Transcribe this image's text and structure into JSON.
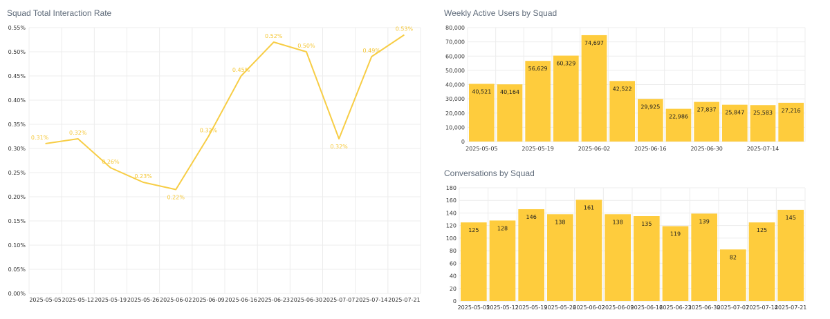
{
  "colors": {
    "accent": "#fecc3d",
    "line": "#f7cd45",
    "line_label": "#f5c736",
    "grid": "#ececec",
    "title": "#5f6b7a"
  },
  "panels": {
    "rate": {
      "title": "Squad Total Interaction Rate"
    },
    "wau": {
      "title": "Weekly Active Users by Squad"
    },
    "conv": {
      "title": "Conversations by Squad"
    }
  },
  "chart_data": [
    {
      "id": "rate",
      "type": "line",
      "title": "Squad Total Interaction Rate",
      "x": [
        "2025-05-05",
        "2025-05-12",
        "2025-05-19",
        "2025-05-26",
        "2025-06-02",
        "2025-06-09",
        "2025-06-16",
        "2025-06-23",
        "2025-06-30",
        "2025-07-07",
        "2025-07-14",
        "2025-07-21"
      ],
      "series": [
        {
          "values": [
            0.31,
            0.32,
            0.26,
            0.23,
            0.215,
            0.325,
            0.45,
            0.52,
            0.5,
            0.32,
            0.49,
            0.535
          ]
        }
      ],
      "data_labels": [
        "0.31%",
        "0.32%",
        "0.26%",
        "0.23%",
        "0.22%",
        "0.32%",
        "0.45%",
        "0.52%",
        "0.50%",
        "0.32%",
        "0.49%",
        "0.53%"
      ],
      "y_ticks": [
        "0.00%",
        "0.05%",
        "0.10%",
        "0.15%",
        "0.20%",
        "0.25%",
        "0.30%",
        "0.35%",
        "0.40%",
        "0.45%",
        "0.50%",
        "0.55%"
      ],
      "ylim": [
        0,
        0.55
      ],
      "grid": true
    },
    {
      "id": "wau",
      "type": "bar",
      "title": "Weekly Active Users by Squad",
      "categories": [
        "2025-05-05",
        "2025-05-12",
        "2025-05-19",
        "2025-05-26",
        "2025-06-02",
        "2025-06-09",
        "2025-06-16",
        "2025-06-23",
        "2025-06-30",
        "2025-07-07",
        "2025-07-14",
        "2025-07-21"
      ],
      "values": [
        40521,
        40164,
        56629,
        60329,
        74697,
        42522,
        29925,
        22986,
        27837,
        25847,
        25583,
        27216
      ],
      "data_labels": [
        "40,521",
        "40,164",
        "56,629",
        "60,329",
        "74,697",
        "42,522",
        "29,925",
        "22,986",
        "27,837",
        "25,847",
        "25,583",
        "27,216"
      ],
      "x_tick_labels": [
        "2025-05-05",
        "2025-05-19",
        "2025-06-02",
        "2025-06-16",
        "2025-06-30",
        "2025-07-14"
      ],
      "y_ticks": [
        "0",
        "10,000",
        "20,000",
        "30,000",
        "40,000",
        "50,000",
        "60,000",
        "70,000",
        "80,000"
      ],
      "ylim": [
        0,
        80000
      ],
      "grid": true
    },
    {
      "id": "conv",
      "type": "bar",
      "title": "Conversations by Squad",
      "categories": [
        "2025-05-05",
        "2025-05-12",
        "2025-05-19",
        "2025-05-26",
        "2025-06-02",
        "2025-06-09",
        "2025-06-16",
        "2025-06-23",
        "2025-06-30",
        "2025-07-07",
        "2025-07-14",
        "2025-07-21"
      ],
      "values": [
        125,
        128,
        146,
        138,
        161,
        138,
        135,
        119,
        139,
        82,
        125,
        145
      ],
      "data_labels": [
        "125",
        "128",
        "146",
        "138",
        "161",
        "138",
        "135",
        "119",
        "139",
        "82",
        "125",
        "145"
      ],
      "x_tick_labels": [
        "2025-05-05",
        "2025-05-12",
        "2025-05-19",
        "2025-05-26",
        "2025-06-02",
        "2025-06-09",
        "2025-06-16",
        "2025-06-23",
        "2025-06-30",
        "2025-07-07",
        "2025-07-14",
        "2025-07-21"
      ],
      "y_ticks": [
        "0",
        "20",
        "40",
        "60",
        "80",
        "100",
        "120",
        "140",
        "160",
        "180"
      ],
      "ylim": [
        0,
        180
      ],
      "grid": true
    }
  ]
}
